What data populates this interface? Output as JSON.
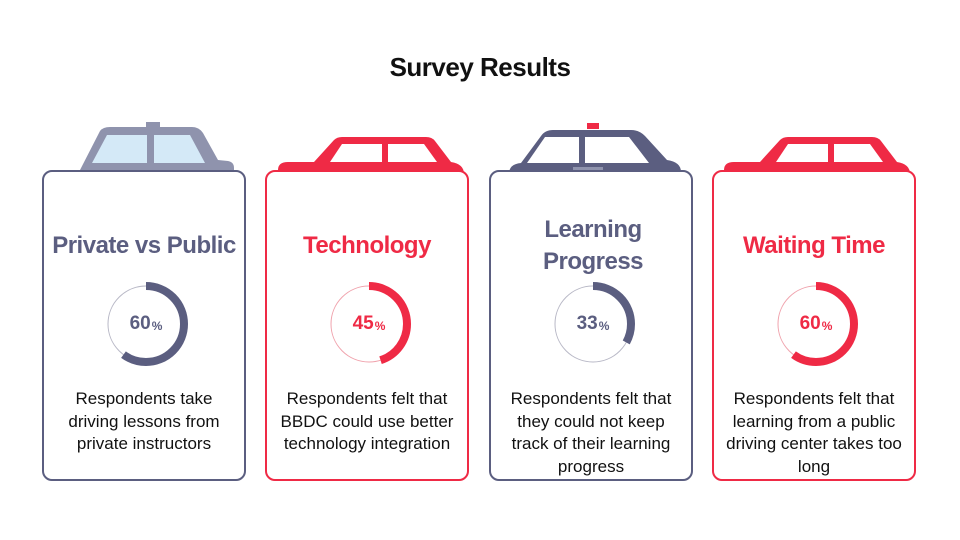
{
  "title": "Survey Results",
  "colors": {
    "slate": "#5b5e80",
    "red": "#ef2a45"
  },
  "cards": [
    {
      "heading": "Private vs Public",
      "value": "60",
      "unit": "%",
      "fraction": 0.6,
      "color": "#5b5e80",
      "car": "taxi-icon",
      "description": "Respondents take driving lessons from private instructors"
    },
    {
      "heading": "Technology",
      "value": "45",
      "unit": "%",
      "fraction": 0.45,
      "color": "#ef2a45",
      "car": "red-car-icon",
      "description": "Respondents felt that BBDC could use better technology integration"
    },
    {
      "heading": "Learning Progress",
      "value": "33",
      "unit": "%",
      "fraction": 0.33,
      "color": "#5b5e80",
      "car": "police-car-icon",
      "description": "Respondents felt that they could not keep track of their learning progress"
    },
    {
      "heading": "Waiting Time",
      "value": "60",
      "unit": "%",
      "fraction": 0.6,
      "color": "#ef2a45",
      "car": "red-car-icon",
      "description": "Respondents felt that learning from a public driving center takes too long"
    }
  ]
}
